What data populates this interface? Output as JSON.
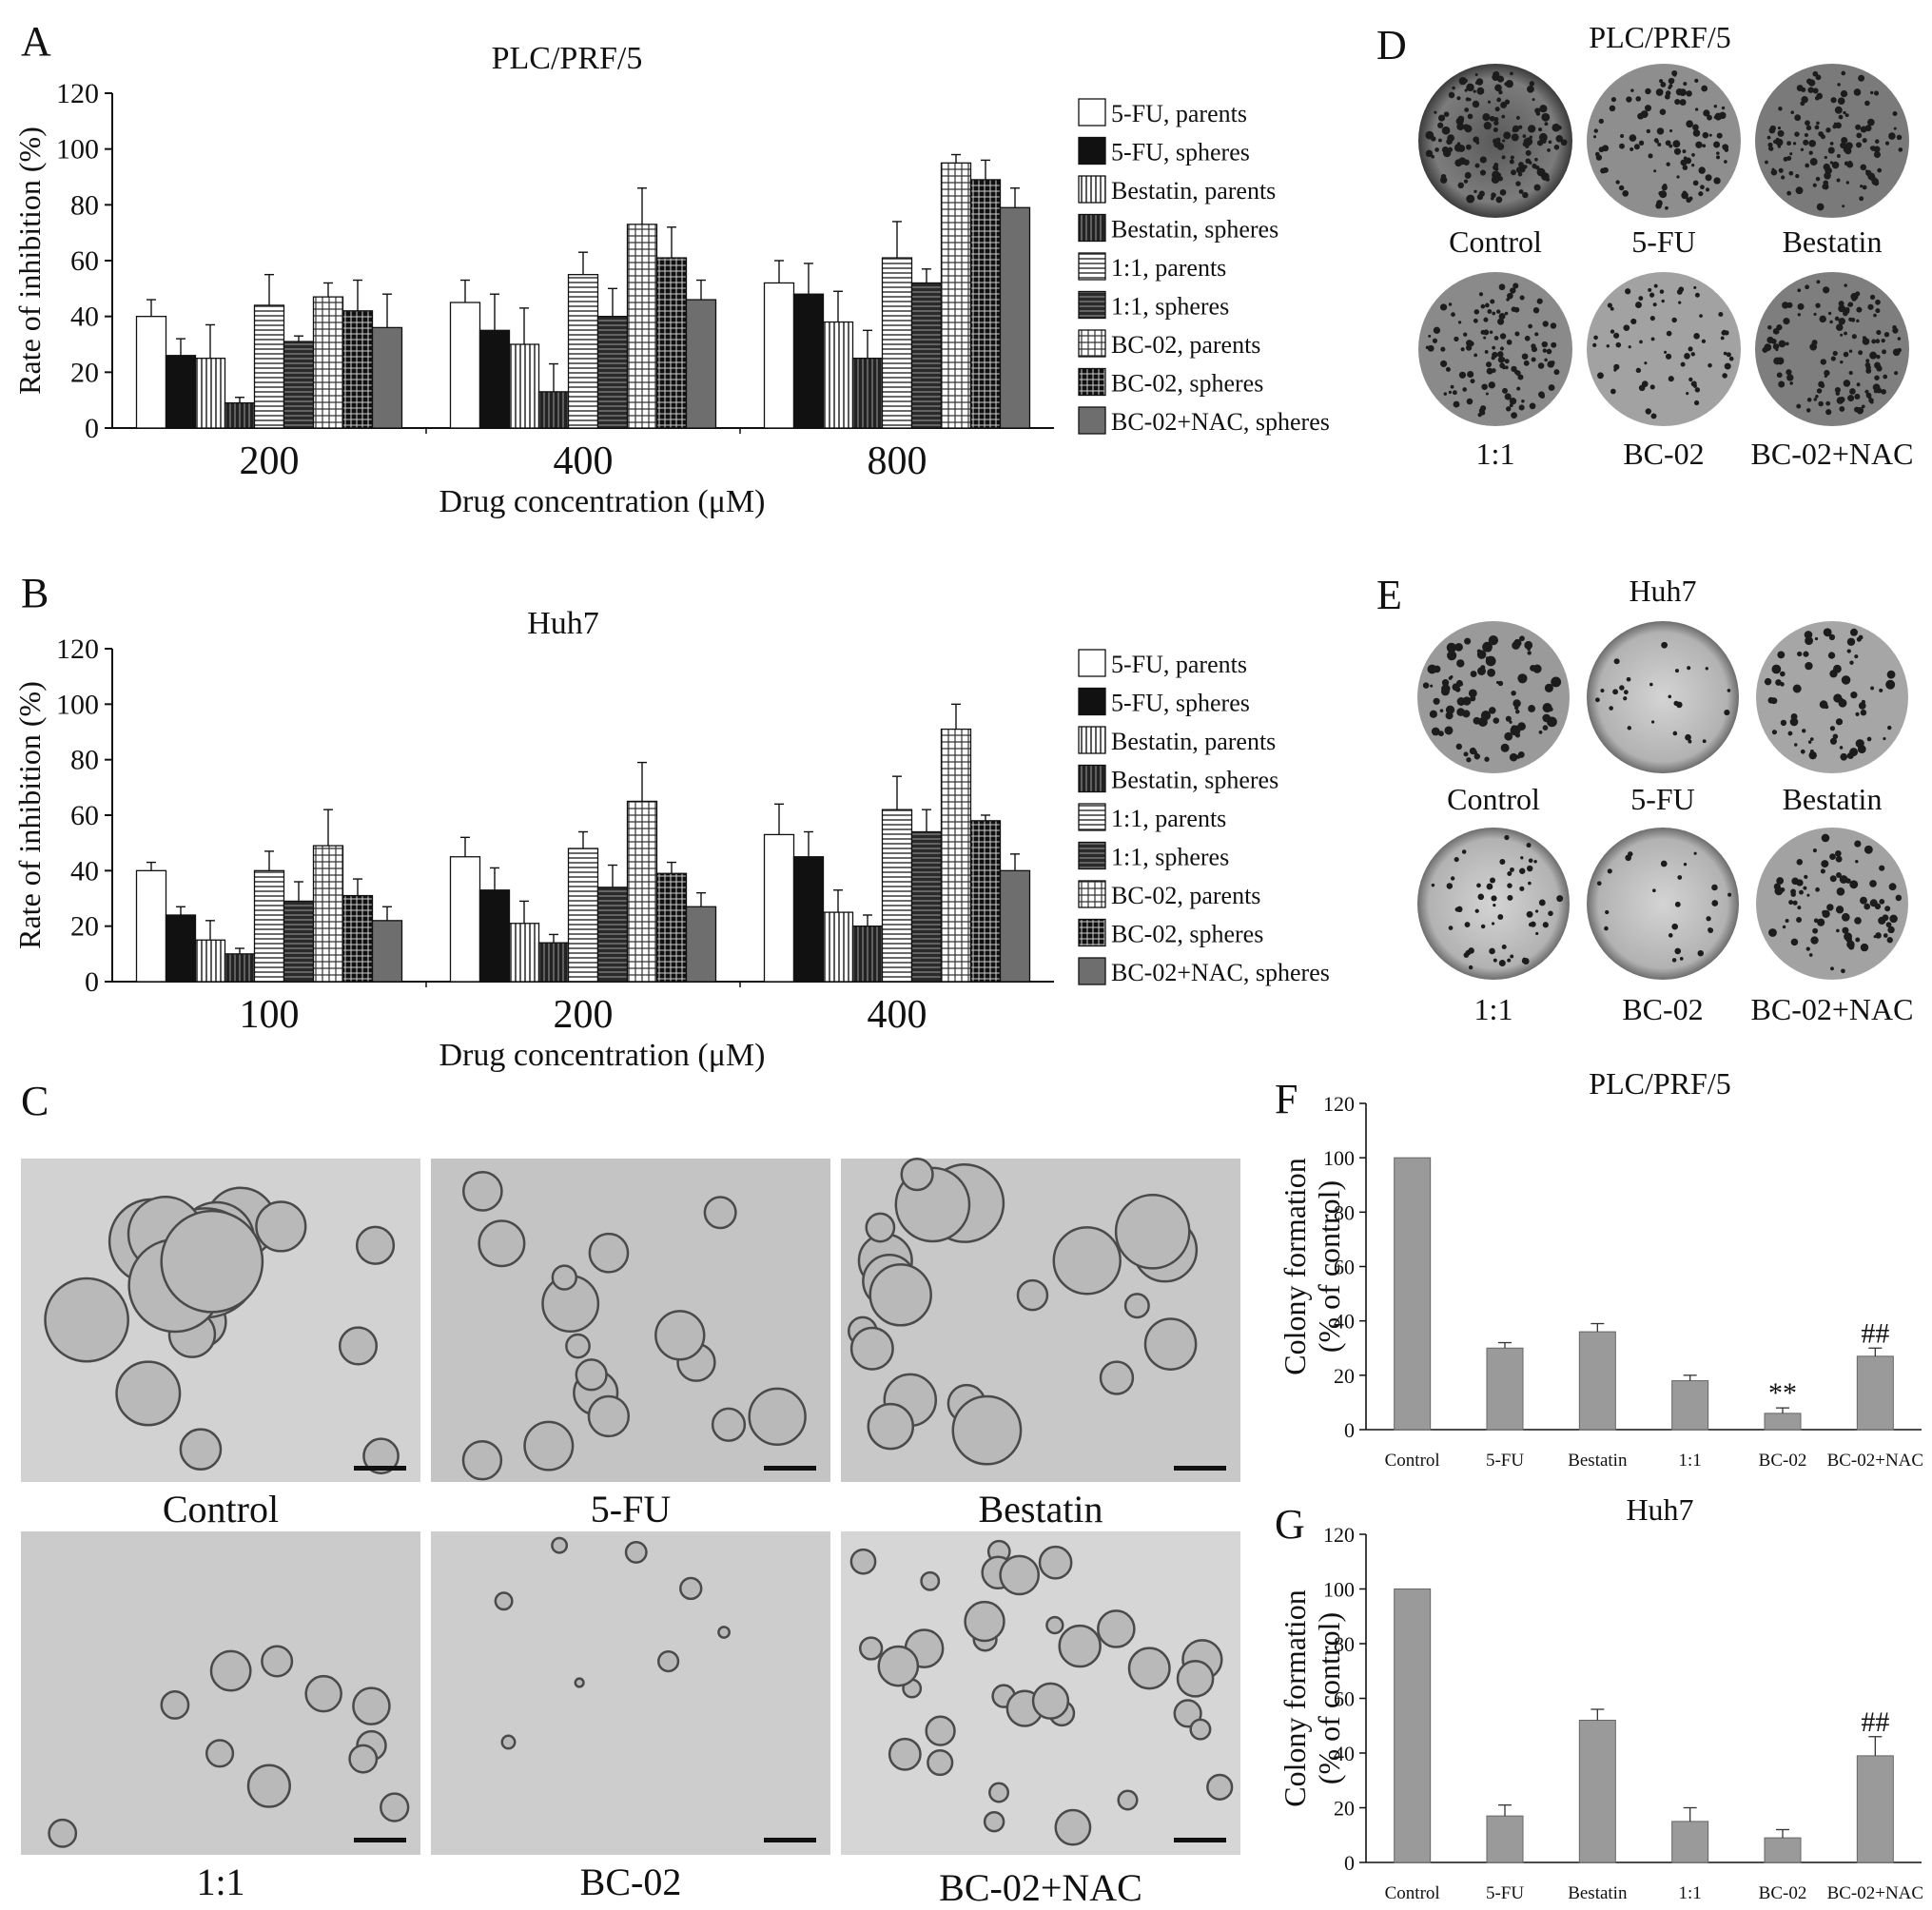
{
  "colors": {
    "bar_gray": "#9a9a9a",
    "bar_dark": "#6e6e6e",
    "ink": "#111111",
    "photo_bg": "#c9c9c9",
    "dish_bg": "#b9b9b9"
  },
  "panels": {
    "A": {
      "letter": "A"
    },
    "B": {
      "letter": "B"
    },
    "C": {
      "letter": "C",
      "labels": [
        "Control",
        "5-FU",
        "Bestatin",
        "1:1",
        "BC-02",
        "BC-02+NAC"
      ]
    },
    "D": {
      "letter": "D",
      "title": "PLC/PRF/5",
      "labels": [
        "Control",
        "5-FU",
        "Bestatin",
        "1:1",
        "BC-02",
        "BC-02+NAC"
      ]
    },
    "E": {
      "letter": "E",
      "title": "Huh7",
      "labels": [
        "Control",
        "5-FU",
        "Bestatin",
        "1:1",
        "BC-02",
        "BC-02+NAC"
      ]
    },
    "F": {
      "letter": "F"
    },
    "G": {
      "letter": "G"
    }
  },
  "chart_data": [
    {
      "panel": "A",
      "type": "bar",
      "title": "PLC/PRF/5",
      "xlabel": "Drug concentration (μM)",
      "ylabel": "Rate of inhibition (%)",
      "ylim": [
        0,
        120
      ],
      "yticks": [
        0,
        20,
        40,
        60,
        80,
        100,
        120
      ],
      "categories": [
        "200",
        "400",
        "800"
      ],
      "legend_position": "right",
      "series": [
        {
          "name": "5-FU, parents",
          "pattern": "white",
          "values": [
            40,
            45,
            52
          ],
          "errors": [
            6,
            8,
            8
          ]
        },
        {
          "name": "5-FU, spheres",
          "pattern": "black",
          "values": [
            26,
            35,
            48
          ],
          "errors": [
            6,
            13,
            11
          ]
        },
        {
          "name": "Bestatin, parents",
          "pattern": "vlines",
          "values": [
            25,
            30,
            38
          ],
          "errors": [
            12,
            13,
            11
          ]
        },
        {
          "name": "Bestatin, spheres",
          "pattern": "vlines-dark",
          "values": [
            9,
            13,
            25
          ],
          "errors": [
            2,
            10,
            10
          ]
        },
        {
          "name": "1:1, parents",
          "pattern": "hlines",
          "values": [
            44,
            55,
            61
          ],
          "errors": [
            11,
            8,
            13
          ]
        },
        {
          "name": "1:1, spheres",
          "pattern": "hlines-dark",
          "values": [
            31,
            40,
            52
          ],
          "errors": [
            2,
            10,
            5
          ]
        },
        {
          "name": "BC-02, parents",
          "pattern": "grid",
          "values": [
            47,
            73,
            95
          ],
          "errors": [
            5,
            13,
            3
          ]
        },
        {
          "name": "BC-02, spheres",
          "pattern": "checker",
          "values": [
            42,
            61,
            89
          ],
          "errors": [
            11,
            11,
            7
          ]
        },
        {
          "name": "BC-02+NAC, spheres",
          "pattern": "gray",
          "values": [
            36,
            46,
            79
          ],
          "errors": [
            12,
            7,
            7
          ]
        }
      ]
    },
    {
      "panel": "B",
      "type": "bar",
      "title": "Huh7",
      "xlabel": "Drug concentration (μM)",
      "ylabel": "Rate of inhibition (%)",
      "ylim": [
        0,
        120
      ],
      "yticks": [
        0,
        20,
        40,
        60,
        80,
        100,
        120
      ],
      "categories": [
        "100",
        "200",
        "400"
      ],
      "legend_position": "right",
      "series": [
        {
          "name": "5-FU, parents",
          "pattern": "white",
          "values": [
            40,
            45,
            53
          ],
          "errors": [
            3,
            7,
            11
          ]
        },
        {
          "name": "5-FU, spheres",
          "pattern": "black",
          "values": [
            24,
            33,
            45
          ],
          "errors": [
            3,
            8,
            9
          ]
        },
        {
          "name": "Bestatin, parents",
          "pattern": "vlines",
          "values": [
            15,
            21,
            25
          ],
          "errors": [
            7,
            8,
            8
          ]
        },
        {
          "name": "Bestatin, spheres",
          "pattern": "vlines-dark",
          "values": [
            10,
            14,
            20
          ],
          "errors": [
            2,
            3,
            4
          ]
        },
        {
          "name": "1:1, parents",
          "pattern": "hlines",
          "values": [
            40,
            48,
            62
          ],
          "errors": [
            7,
            6,
            12
          ]
        },
        {
          "name": "1:1, spheres",
          "pattern": "hlines-dark",
          "values": [
            29,
            34,
            54
          ],
          "errors": [
            7,
            8,
            8
          ]
        },
        {
          "name": "BC-02, parents",
          "pattern": "grid",
          "values": [
            49,
            65,
            91
          ],
          "errors": [
            13,
            14,
            9
          ]
        },
        {
          "name": "BC-02, spheres",
          "pattern": "checker",
          "values": [
            31,
            39,
            58
          ],
          "errors": [
            6,
            4,
            2
          ]
        },
        {
          "name": "BC-02+NAC, spheres",
          "pattern": "gray",
          "values": [
            22,
            27,
            40
          ],
          "errors": [
            5,
            5,
            6
          ]
        }
      ]
    },
    {
      "panel": "F",
      "type": "bar",
      "title": "PLC/PRF/5",
      "xlabel": "",
      "ylabel": [
        "Colony formation",
        "(% of control)"
      ],
      "ylim": [
        0,
        120
      ],
      "yticks": [
        0,
        20,
        40,
        60,
        80,
        100,
        120
      ],
      "categories": [
        "Control",
        "5-FU",
        "Bestatin",
        "1:1",
        "BC-02",
        "BC-02+NAC"
      ],
      "values": [
        100,
        30,
        36,
        18,
        6,
        27
      ],
      "errors": [
        0,
        2,
        3,
        2,
        2,
        3
      ],
      "annotations": [
        "",
        "",
        "",
        "",
        "**",
        "##"
      ]
    },
    {
      "panel": "G",
      "type": "bar",
      "title": "Huh7",
      "xlabel": "",
      "ylabel": [
        "Colony formation",
        "(% of control)"
      ],
      "ylim": [
        0,
        120
      ],
      "yticks": [
        0,
        20,
        40,
        60,
        80,
        100,
        120
      ],
      "categories": [
        "Control",
        "5-FU",
        "Bestatin",
        "1:1",
        "BC-02",
        "BC-02+NAC"
      ],
      "values": [
        100,
        17,
        52,
        15,
        9,
        39
      ],
      "errors": [
        0,
        4,
        4,
        5,
        3,
        7
      ],
      "annotations": [
        "",
        "",
        "",
        "",
        "",
        "##"
      ]
    }
  ]
}
